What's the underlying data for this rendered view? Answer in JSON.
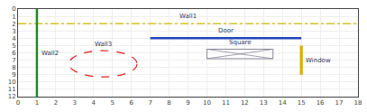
{
  "chart_data": {
    "type": "diagram",
    "xlim": [
      0,
      18
    ],
    "ylim": [
      12,
      0
    ],
    "xticks": [
      0,
      1,
      2,
      3,
      4,
      5,
      6,
      7,
      8,
      9,
      10,
      11,
      12,
      13,
      14,
      15,
      16,
      17,
      18
    ],
    "yticks": [
      0,
      1,
      2,
      3,
      4,
      5,
      6,
      7,
      8,
      9,
      10,
      11,
      12
    ],
    "grid": true,
    "series": [
      {
        "name": "Wall1",
        "type": "hline",
        "x1": 0,
        "x2": 18,
        "y": 2,
        "color": "#ccbb00",
        "line_style": "dashdot"
      },
      {
        "name": "Wall2",
        "type": "vline",
        "x": 1,
        "y1": 0,
        "y2": 12,
        "color": "#228822",
        "line_style": "solid"
      },
      {
        "name": "Wall3",
        "type": "circle",
        "cx": 4.5,
        "cy": 7.5,
        "r": 1.8,
        "color": "#dd2222",
        "line_style": "dashed"
      },
      {
        "name": "Door",
        "type": "hline",
        "x1": 7,
        "x2": 15,
        "y": 4,
        "color": "#2244bb",
        "line_style": "solid"
      },
      {
        "name": "Window",
        "type": "vline",
        "x": 15,
        "y1": 5,
        "y2": 9,
        "color": "#ddaa00",
        "line_style": "solid"
      },
      {
        "name": "Square",
        "type": "rectangle",
        "x": 10,
        "y": 5.5,
        "w": 3.5,
        "h": 1.3,
        "color": "#888899",
        "line_style": "solid"
      }
    ]
  }
}
